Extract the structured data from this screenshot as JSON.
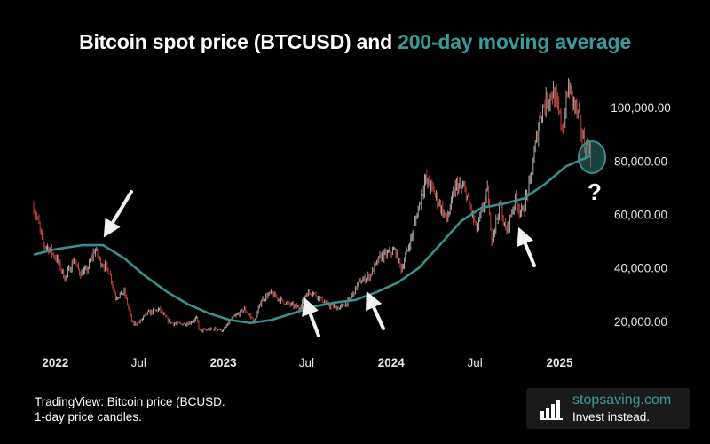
{
  "title": {
    "main": "Bitcoin spot price (BTCUSD) and ",
    "highlight": "200-day moving average"
  },
  "footnote": {
    "line1": "TradingView: Bitcoin price (BCUSD.",
    "line2": "1-day price candles."
  },
  "brand": {
    "name": "stopsaving.com",
    "tagline": "Invest instead.",
    "icon": "bar-chart-logo-icon"
  },
  "colors": {
    "background": "#000000",
    "moving_average": "#3a8f8f",
    "candle_up": "#b9b9b9",
    "candle_down": "#d4453c",
    "highlight_title": "#3a9a9a",
    "annotation_arrows": "#f2f2f2"
  },
  "annotations": {
    "question": "?"
  },
  "chart_data": {
    "type": "line",
    "title": "Bitcoin spot price (BTCUSD) and 200-day moving average",
    "xlabel": "",
    "ylabel": "",
    "x_axis": "date",
    "xlim": [
      "2021-11-15",
      "2025-03-20"
    ],
    "ylim": [
      10000,
      112000
    ],
    "yaxis_position": "right",
    "grid": false,
    "x_ticks": [
      {
        "date": "2022-01-01",
        "label": "2022"
      },
      {
        "date": "2022-07-01",
        "label": "Jul"
      },
      {
        "date": "2023-01-01",
        "label": "2023"
      },
      {
        "date": "2023-07-01",
        "label": "Jul"
      },
      {
        "date": "2024-01-01",
        "label": "2024"
      },
      {
        "date": "2024-07-01",
        "label": "Jul"
      },
      {
        "date": "2025-01-01",
        "label": "2025"
      }
    ],
    "y_ticks": [
      {
        "value": 20000,
        "label": "20,000.00"
      },
      {
        "value": 40000,
        "label": "40,000.00"
      },
      {
        "value": 60000,
        "label": "60,000.00"
      },
      {
        "value": 80000,
        "label": "80,000.00"
      },
      {
        "value": 100000,
        "label": "100,000.00"
      }
    ],
    "series": [
      {
        "kind": "price",
        "points": [
          [
            "2021-11-15",
            63000
          ],
          [
            "2021-11-25",
            57000
          ],
          [
            "2021-12-05",
            49000
          ],
          [
            "2021-12-20",
            47000
          ],
          [
            "2022-01-05",
            43000
          ],
          [
            "2022-01-22",
            36000
          ],
          [
            "2022-02-10",
            43000
          ],
          [
            "2022-02-24",
            38000
          ],
          [
            "2022-03-10",
            39000
          ],
          [
            "2022-03-28",
            47000
          ],
          [
            "2022-04-10",
            42000
          ],
          [
            "2022-04-28",
            39000
          ],
          [
            "2022-05-12",
            29000
          ],
          [
            "2022-05-31",
            31000
          ],
          [
            "2022-06-18",
            19000
          ],
          [
            "2022-07-01",
            19500
          ],
          [
            "2022-07-20",
            23000
          ],
          [
            "2022-08-14",
            24500
          ],
          [
            "2022-09-05",
            19800
          ],
          [
            "2022-09-20",
            19000
          ],
          [
            "2022-10-15",
            19200
          ],
          [
            "2022-11-05",
            21000
          ],
          [
            "2022-11-10",
            16500
          ],
          [
            "2022-12-15",
            17200
          ],
          [
            "2023-01-01",
            16600
          ],
          [
            "2023-01-20",
            21000
          ],
          [
            "2023-02-16",
            24500
          ],
          [
            "2023-03-10",
            20000
          ],
          [
            "2023-03-25",
            28000
          ],
          [
            "2023-04-14",
            30500
          ],
          [
            "2023-05-15",
            27000
          ],
          [
            "2023-06-15",
            25000
          ],
          [
            "2023-06-30",
            30500
          ],
          [
            "2023-07-14",
            31000
          ],
          [
            "2023-08-17",
            26000
          ],
          [
            "2023-09-11",
            25000
          ],
          [
            "2023-10-01",
            27500
          ],
          [
            "2023-10-23",
            34500
          ],
          [
            "2023-11-15",
            37000
          ],
          [
            "2023-12-08",
            44000
          ],
          [
            "2024-01-10",
            46500
          ],
          [
            "2024-01-23",
            39500
          ],
          [
            "2024-02-15",
            52000
          ],
          [
            "2024-03-14",
            73000
          ],
          [
            "2024-04-01",
            69000
          ],
          [
            "2024-05-01",
            58000
          ],
          [
            "2024-05-21",
            71000
          ],
          [
            "2024-06-10",
            69000
          ],
          [
            "2024-07-05",
            54000
          ],
          [
            "2024-07-29",
            69000
          ],
          [
            "2024-08-05",
            50000
          ],
          [
            "2024-08-25",
            64000
          ],
          [
            "2024-09-06",
            53000
          ],
          [
            "2024-09-27",
            66000
          ],
          [
            "2024-10-11",
            60000
          ],
          [
            "2024-10-29",
            72000
          ],
          [
            "2024-11-13",
            90000
          ],
          [
            "2024-11-22",
            99000
          ],
          [
            "2024-12-17",
            106000
          ],
          [
            "2025-01-08",
            92000
          ],
          [
            "2025-01-20",
            108000
          ],
          [
            "2025-02-10",
            97000
          ],
          [
            "2025-02-26",
            84000
          ],
          [
            "2025-03-04",
            88000
          ],
          [
            "2025-03-10",
            79000
          ]
        ]
      },
      {
        "kind": "moving_average",
        "points": [
          [
            "2021-11-15",
            45000
          ],
          [
            "2022-01-01",
            47000
          ],
          [
            "2022-03-01",
            48500
          ],
          [
            "2022-04-15",
            48500
          ],
          [
            "2022-06-01",
            43500
          ],
          [
            "2022-07-15",
            37000
          ],
          [
            "2022-09-01",
            31000
          ],
          [
            "2022-10-15",
            26500
          ],
          [
            "2022-12-01",
            23000
          ],
          [
            "2023-01-15",
            20500
          ],
          [
            "2023-03-01",
            19400
          ],
          [
            "2023-04-15",
            20500
          ],
          [
            "2023-06-01",
            23000
          ],
          [
            "2023-07-15",
            25500
          ],
          [
            "2023-09-01",
            27000
          ],
          [
            "2023-10-15",
            28000
          ],
          [
            "2023-12-01",
            31000
          ],
          [
            "2024-01-15",
            34500
          ],
          [
            "2024-03-01",
            40000
          ],
          [
            "2024-04-15",
            48500
          ],
          [
            "2024-06-01",
            57500
          ],
          [
            "2024-07-15",
            62500
          ],
          [
            "2024-09-01",
            64000
          ],
          [
            "2024-10-15",
            66000
          ],
          [
            "2024-12-01",
            71500
          ],
          [
            "2025-01-15",
            78000
          ],
          [
            "2025-03-10",
            82000
          ]
        ]
      }
    ]
  }
}
